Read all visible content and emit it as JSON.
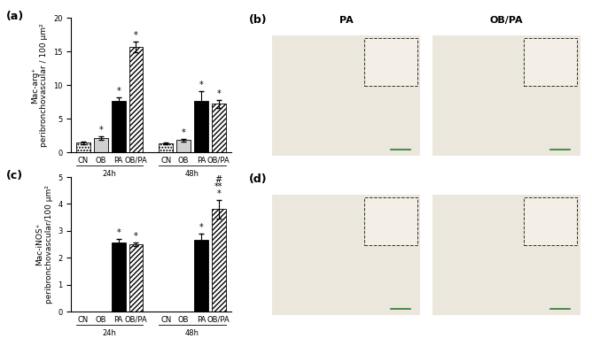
{
  "chart_data": [
    {
      "type": "bar",
      "panel": "(a)",
      "y_label": "Mac-arg⁺\nperibronchovascular / 100 μm²",
      "categories": [
        "CN",
        "OB",
        "PA",
        "OB/PA",
        "CN",
        "OB",
        "PA",
        "OB/PA"
      ],
      "group_labels": [
        "24h",
        "48h"
      ],
      "values": [
        1.4,
        2.1,
        7.6,
        15.7,
        1.3,
        1.8,
        7.6,
        7.2
      ],
      "errors": [
        0.15,
        0.3,
        0.6,
        0.8,
        0.1,
        0.2,
        1.5,
        0.6
      ],
      "annotations": [
        null,
        "*",
        "*",
        "*",
        null,
        "*",
        "*",
        "*"
      ],
      "colors": [
        "#ffffff",
        "#d0d0d0",
        "#000000",
        "#ffffff",
        "#ffffff",
        "#d0d0d0",
        "#000000",
        "#ffffff"
      ],
      "ylim": [
        0,
        20
      ],
      "yticks": [
        0,
        5,
        10,
        15,
        20
      ]
    },
    {
      "type": "bar",
      "panel": "(c)",
      "y_label": "Mac-iNOS⁺\nperibronchovascular/100 μm²",
      "categories": [
        "CN",
        "OB",
        "PA",
        "OB/PA",
        "CN",
        "OB",
        "PA",
        "OB/PA"
      ],
      "group_labels": [
        "24h",
        "48h"
      ],
      "values": [
        0,
        0,
        2.55,
        2.5,
        0,
        0,
        2.65,
        3.8
      ],
      "errors": [
        0,
        0,
        0.15,
        0.08,
        0,
        0,
        0.25,
        0.35
      ],
      "annotations": [
        null,
        null,
        "*",
        "*",
        null,
        null,
        "*",
        "#\n**\n*"
      ],
      "colors": [
        "#ffffff",
        "#d0d0d0",
        "#000000",
        "#ffffff",
        "#ffffff",
        "#d0d0d0",
        "#000000",
        "#ffffff"
      ],
      "ylim": [
        0,
        5
      ],
      "yticks": [
        0,
        1,
        2,
        3,
        4,
        5
      ]
    }
  ],
  "image_panels": [
    {
      "panel": "(b)",
      "titles": [
        "PA",
        "OB/PA"
      ]
    },
    {
      "panel": "(d)"
    }
  ]
}
